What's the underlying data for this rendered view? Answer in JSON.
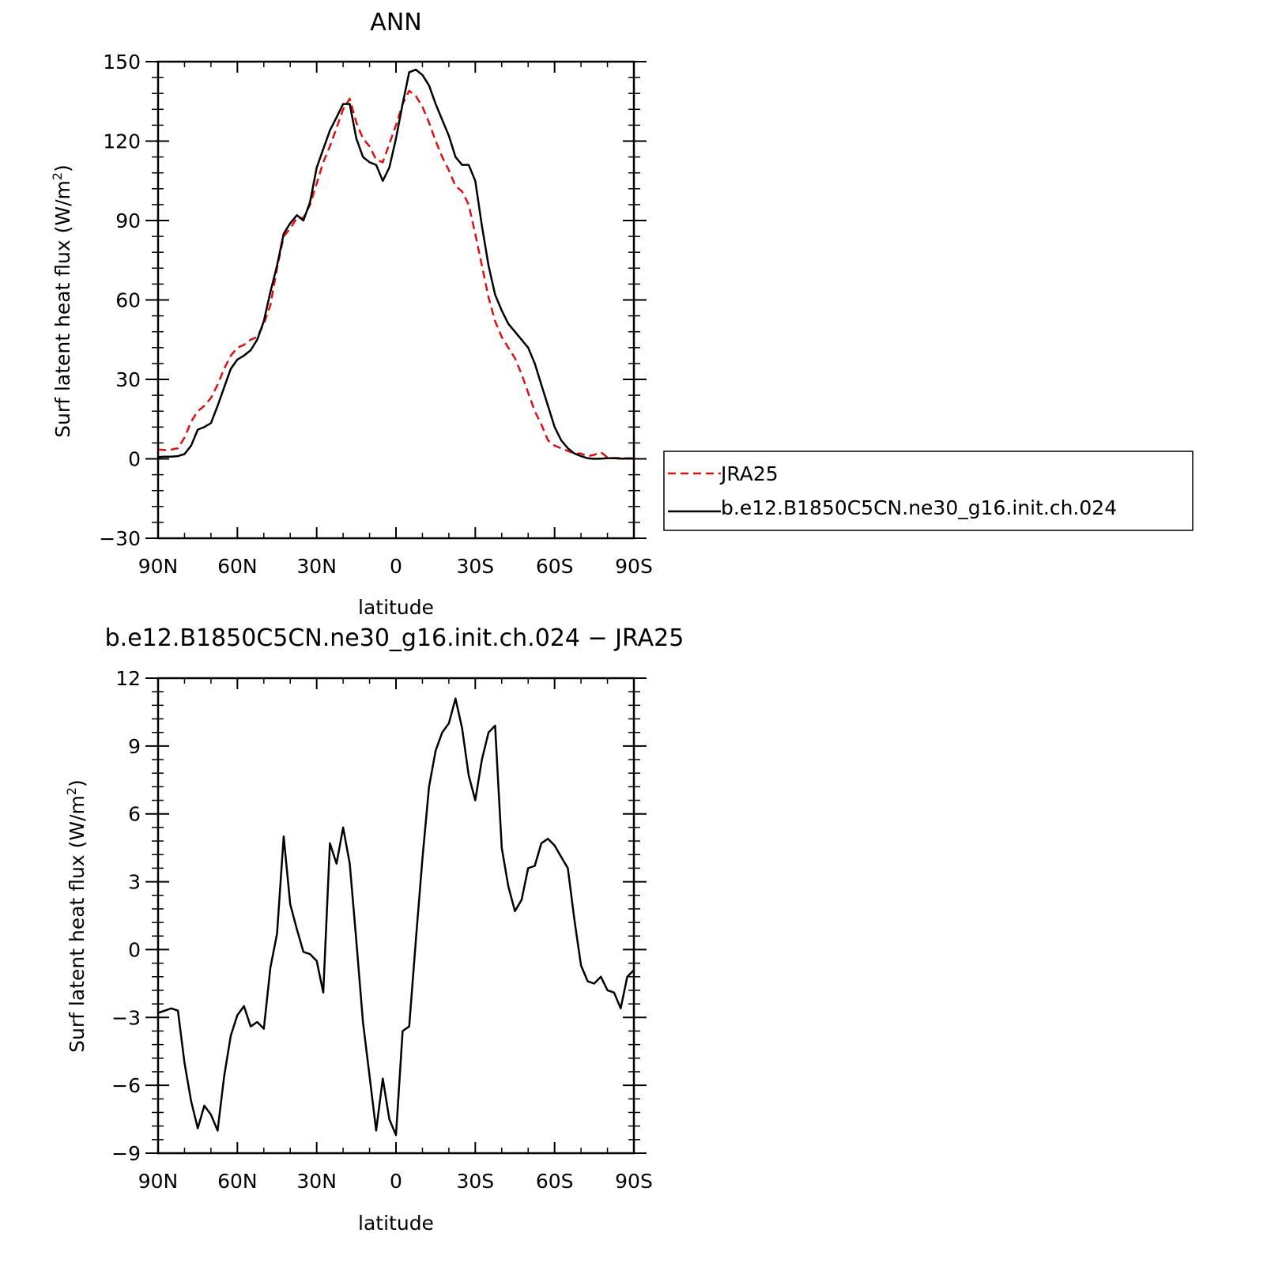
{
  "chart_data": [
    {
      "type": "line",
      "title": "ANN",
      "xlabel": "latitude",
      "ylabel": "Surf latent heat flux (W/m",
      "ylabel_sup": "2",
      "ylabel_end": ")",
      "xlim": [
        90,
        -90
      ],
      "ylim": [
        -30,
        150
      ],
      "x_ticks": [
        90,
        60,
        30,
        0,
        -30,
        -60,
        -90
      ],
      "x_tick_labels": [
        "90N",
        "60N",
        "30N",
        "0",
        "30S",
        "60S",
        "90S"
      ],
      "y_ticks": [
        -30,
        0,
        30,
        60,
        90,
        120,
        150
      ],
      "y_tick_labels": [
        "−30",
        "0",
        "30",
        "60",
        "90",
        "120",
        "150"
      ],
      "legend_position": "right",
      "series": [
        {
          "name": "JRA25",
          "color": "#e01010",
          "dash": "dashed",
          "x": [
            90,
            87.5,
            85,
            82.5,
            80,
            77.5,
            75,
            72.5,
            70,
            67.5,
            65,
            62.5,
            60,
            57.5,
            55,
            52.5,
            50,
            47.5,
            45,
            42.5,
            40,
            37.5,
            35,
            32.5,
            30,
            27.5,
            25,
            22.5,
            20,
            17.5,
            15,
            12.5,
            10,
            7.5,
            5,
            2.5,
            0,
            -2.5,
            -5,
            -7.5,
            -10,
            -12.5,
            -15,
            -17.5,
            -20,
            -22.5,
            -25,
            -27.5,
            -30,
            -32.5,
            -35,
            -37.5,
            -40,
            -42.5,
            -45,
            -47.5,
            -50,
            -52.5,
            -55,
            -57.5,
            -60,
            -62.5,
            -65,
            -67.5,
            -70,
            -72.5,
            -75,
            -77.5,
            -80,
            -82.5,
            -85,
            -87.5,
            -90
          ],
          "y": [
            3.5,
            3.3,
            3.5,
            4,
            8,
            14,
            18,
            20,
            23,
            28,
            34,
            39,
            42,
            43,
            45,
            46,
            51,
            58,
            72,
            84,
            87,
            91,
            91,
            96,
            104,
            112,
            118,
            125,
            132,
            136,
            127,
            121,
            118,
            113,
            112,
            119,
            126,
            134,
            139,
            137,
            133,
            127,
            120,
            114,
            109,
            103,
            101,
            96,
            85,
            73,
            61,
            52,
            46,
            42,
            38,
            32,
            25,
            18,
            13,
            7,
            5,
            4,
            3,
            2,
            2,
            1,
            1.5,
            2.5,
            0.5,
            0.3,
            0.3,
            0.2,
            0.2
          ]
        },
        {
          "name": "b.e12.B1850C5CN.ne30_g16.init.ch.024",
          "color": "#000000",
          "dash": "solid",
          "x": [
            90,
            87.5,
            85,
            82.5,
            80,
            77.5,
            75,
            72.5,
            70,
            67.5,
            65,
            62.5,
            60,
            57.5,
            55,
            52.5,
            50,
            47.5,
            45,
            42.5,
            40,
            37.5,
            35,
            32.5,
            30,
            27.5,
            25,
            22.5,
            20,
            17.5,
            15,
            12.5,
            10,
            7.5,
            5,
            2.5,
            0,
            -2.5,
            -5,
            -7.5,
            -10,
            -12.5,
            -15,
            -17.5,
            -20,
            -22.5,
            -25,
            -27.5,
            -30,
            -32.5,
            -35,
            -37.5,
            -40,
            -42.5,
            -45,
            -47.5,
            -50,
            -52.5,
            -55,
            -57.5,
            -60,
            -62.5,
            -65,
            -67.5,
            -70,
            -72.5,
            -75,
            -77.5,
            -80,
            -82.5,
            -85,
            -87.5,
            -90
          ],
          "y": [
            0.7,
            0.8,
            0.8,
            1,
            1.8,
            5,
            11,
            12,
            13.5,
            20,
            27,
            34,
            37.5,
            39,
            41,
            45,
            52,
            63,
            73,
            85,
            89,
            92,
            90,
            97,
            110,
            117,
            124,
            129,
            134,
            134,
            121,
            114,
            112,
            111,
            105,
            110,
            121,
            134,
            146,
            147,
            145,
            141,
            134,
            128,
            122,
            114,
            111,
            111,
            105,
            88,
            73,
            62,
            56,
            51,
            48,
            45,
            42,
            36,
            28,
            20,
            12,
            7,
            4,
            2,
            1,
            0.2,
            0,
            0.1,
            0.2,
            0.2,
            0.1,
            0.1,
            0.1
          ]
        }
      ]
    },
    {
      "type": "line",
      "title": "b.e12.B1850C5CN.ne30_g16.init.ch.024 − JRA25",
      "xlabel": "latitude",
      "ylabel": "Surf latent heat flux (W/m",
      "ylabel_sup": "2",
      "ylabel_end": ")",
      "xlim": [
        90,
        -90
      ],
      "ylim": [
        -9,
        12
      ],
      "x_ticks": [
        90,
        60,
        30,
        0,
        -30,
        -60,
        -90
      ],
      "x_tick_labels": [
        "90N",
        "60N",
        "30N",
        "0",
        "30S",
        "60S",
        "90S"
      ],
      "y_ticks": [
        -9,
        -6,
        -3,
        0,
        3,
        6,
        9,
        12
      ],
      "y_tick_labels": [
        "−9",
        "−6",
        "−3",
        "0",
        "3",
        "6",
        "9",
        "12"
      ],
      "series": [
        {
          "color": "#000000",
          "dash": "solid",
          "x": [
            90,
            87.5,
            85,
            82.5,
            80,
            77.5,
            75,
            72.5,
            70,
            67.5,
            65,
            62.5,
            60,
            57.5,
            55,
            52.5,
            50,
            47.5,
            45,
            42.5,
            40,
            37.5,
            35,
            32.5,
            30,
            27.5,
            25,
            22.5,
            20,
            17.5,
            15,
            12.5,
            10,
            7.5,
            5,
            2.5,
            0,
            -2.5,
            -5,
            -7.5,
            -10,
            -12.5,
            -15,
            -17.5,
            -20,
            -22.5,
            -25,
            -27.5,
            -30,
            -32.5,
            -35,
            -37.5,
            -40,
            -42.5,
            -45,
            -47.5,
            -50,
            -52.5,
            -55,
            -57.5,
            -60,
            -62.5,
            -65,
            -67.5,
            -70,
            -72.5,
            -75,
            -77.5,
            -80,
            -82.5,
            -85,
            -87.5,
            -90
          ],
          "y": [
            -2.8,
            -2.7,
            -2.6,
            -2.7,
            -5,
            -6.7,
            -7.9,
            -6.9,
            -7.3,
            -8,
            -5.6,
            -3.8,
            -2.9,
            -2.5,
            -3.4,
            -3.2,
            -3.5,
            -0.8,
            0.7,
            5,
            2,
            0.9,
            -0.1,
            -0.2,
            -0.5,
            -1.9,
            4.7,
            3.8,
            5.4,
            3.8,
            0.4,
            -3.2,
            -5.6,
            -8,
            -5.7,
            -7.5,
            -8.2,
            -3.6,
            -3.4,
            0.4,
            4,
            7.2,
            8.8,
            9.6,
            10,
            11.1,
            9.8,
            7.7,
            6.6,
            8.4,
            9.6,
            9.9,
            4.5,
            2.8,
            1.7,
            2.2,
            3.6,
            3.7,
            4.7,
            4.9,
            4.6,
            4.1,
            3.6,
            1.3,
            -0.7,
            -1.4,
            -1.5,
            -1.2,
            -1.8,
            -1.9,
            -2.6,
            -1.2,
            -0.9
          ]
        }
      ]
    }
  ]
}
